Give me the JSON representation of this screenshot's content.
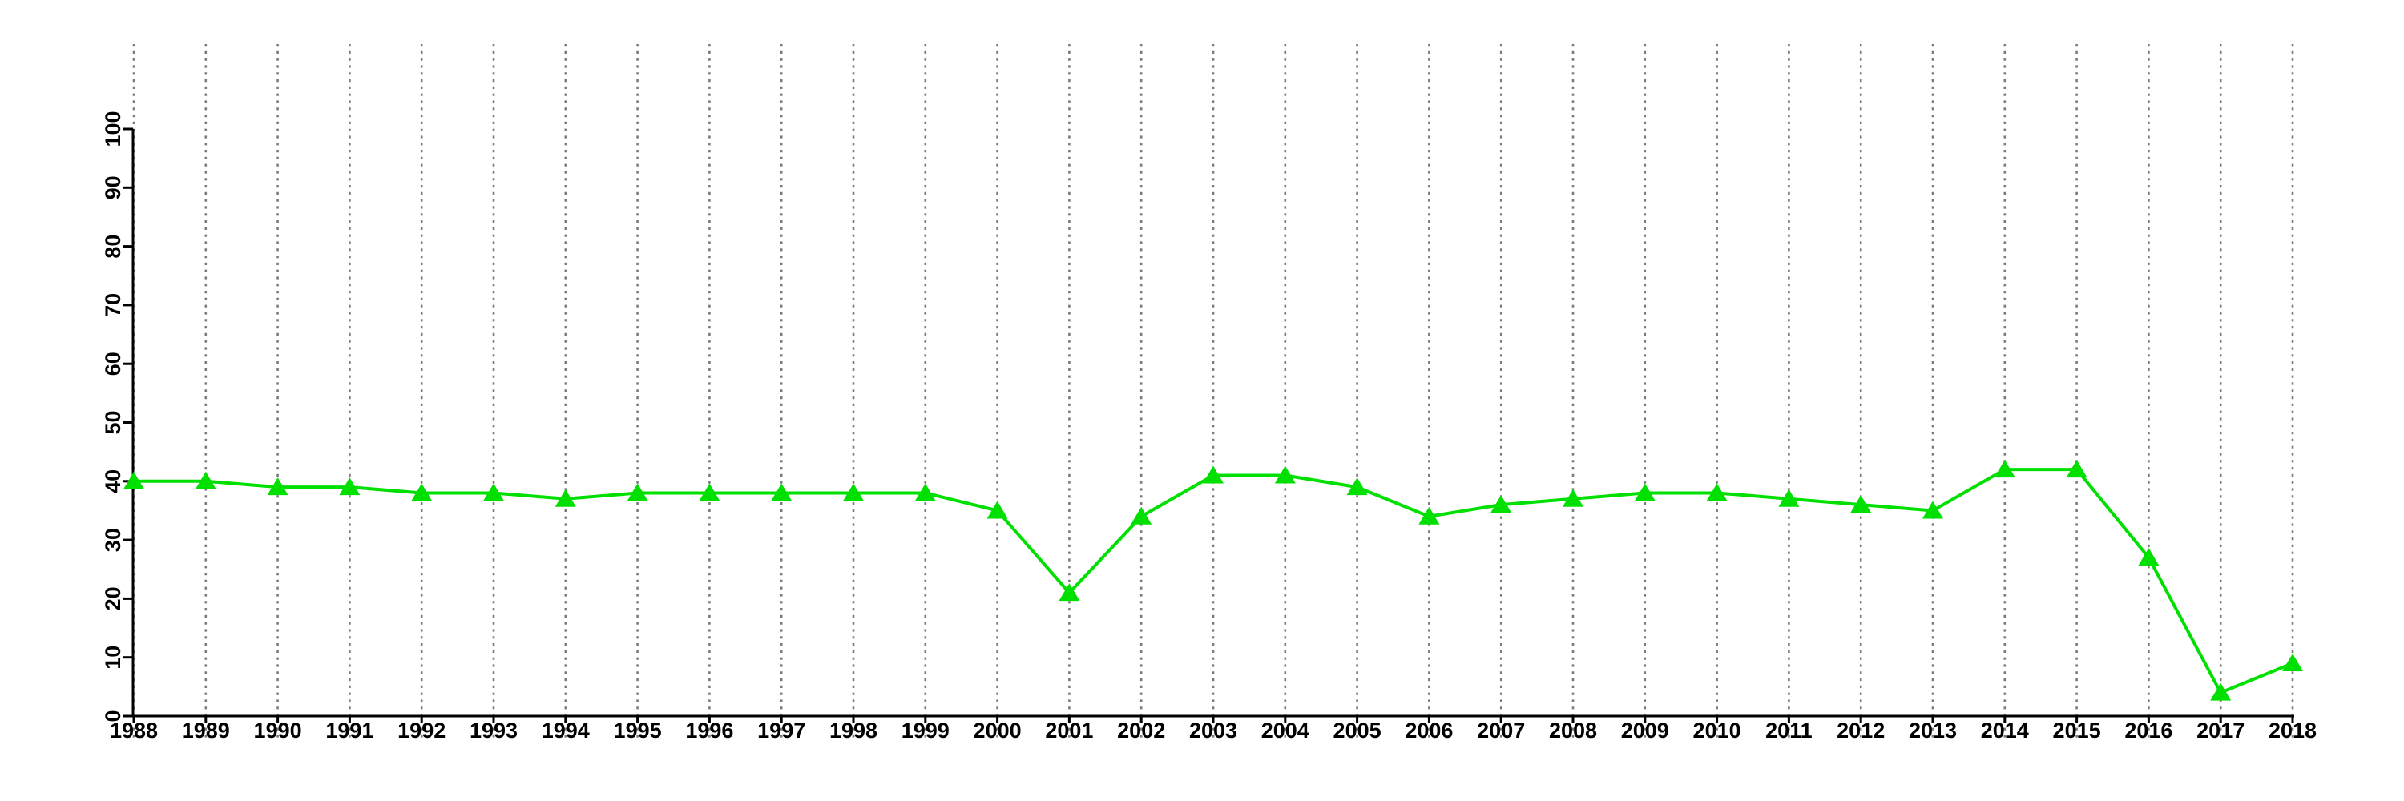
{
  "chart_data": {
    "type": "line",
    "title": "",
    "xlabel": "",
    "ylabel": "",
    "x": [
      1988,
      1989,
      1990,
      1991,
      1992,
      1993,
      1994,
      1995,
      1996,
      1997,
      1998,
      1999,
      2000,
      2001,
      2002,
      2003,
      2004,
      2005,
      2006,
      2007,
      2008,
      2009,
      2010,
      2011,
      2012,
      2013,
      2014,
      2015,
      2016,
      2017,
      2018
    ],
    "x_tick_labels": [
      "1988",
      "1989",
      "1990",
      "1991",
      "1992",
      "1993",
      "1994",
      "1995",
      "1996",
      "1997",
      "1998",
      "1999",
      "2000",
      "2001",
      "2002",
      "2003",
      "2004",
      "2005",
      "2006",
      "2007",
      "2008",
      "2009",
      "2010",
      "2011",
      "2012",
      "2013",
      "2014",
      "2015",
      "2016",
      "2017",
      "2018"
    ],
    "series": [
      {
        "name": "value",
        "values": [
          40,
          40,
          39,
          39,
          38,
          38,
          37,
          38,
          38,
          38,
          38,
          38,
          35,
          21,
          34,
          41,
          41,
          39,
          34,
          36,
          37,
          38,
          38,
          37,
          36,
          35,
          42,
          42,
          27,
          4,
          9
        ],
        "color": "#00E000",
        "marker": "triangle-up"
      }
    ],
    "ylim": [
      0,
      100
    ],
    "y_ticks": [
      0,
      10,
      20,
      30,
      40,
      50,
      60,
      70,
      80,
      90,
      100
    ],
    "y_tick_labels": [
      "0",
      "10",
      "20",
      "30",
      "40",
      "50",
      "60",
      "70",
      "80",
      "90",
      "100"
    ],
    "grid": "vertical-dotted",
    "grid_color": "#7b7b7b",
    "axis_color": "#000000",
    "background": "#ffffff",
    "legend": "none"
  }
}
